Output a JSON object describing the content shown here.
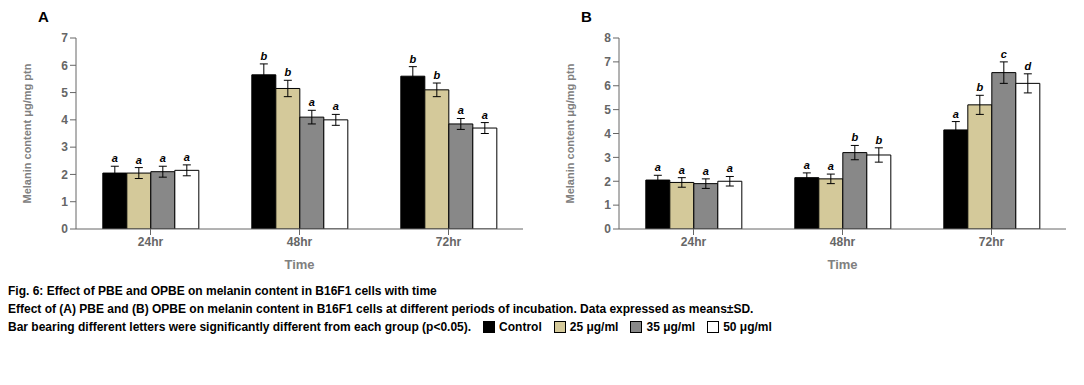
{
  "chart_data": [
    {
      "type": "bar",
      "title": "A",
      "xlabel": "Time",
      "ylabel": "Melanin content μg/mg ptn",
      "categories": [
        "24hr",
        "48hr",
        "72hr"
      ],
      "series": [
        {
          "name": "Control",
          "color": "#000000",
          "values": [
            2.05,
            5.65,
            5.6
          ],
          "errors": [
            0.25,
            0.4,
            0.35
          ],
          "letters": [
            "a",
            "b",
            "b"
          ]
        },
        {
          "name": "25 μg/ml",
          "color": "#d4c99a",
          "values": [
            2.05,
            5.15,
            5.1
          ],
          "errors": [
            0.2,
            0.3,
            0.25
          ],
          "letters": [
            "a",
            "b",
            "b"
          ]
        },
        {
          "name": "35 μg/ml",
          "color": "#888888",
          "values": [
            2.1,
            4.1,
            3.85
          ],
          "errors": [
            0.2,
            0.25,
            0.2
          ],
          "letters": [
            "a",
            "a",
            "a"
          ]
        },
        {
          "name": "50 μg/ml",
          "color": "#ffffff",
          "values": [
            2.15,
            4.0,
            3.7
          ],
          "errors": [
            0.2,
            0.2,
            0.2
          ],
          "letters": [
            "a",
            "a",
            "a"
          ]
        }
      ],
      "ylim": [
        0,
        7
      ],
      "yticks": [
        0,
        1,
        2,
        3,
        4,
        5,
        6,
        7
      ],
      "grid": false
    },
    {
      "type": "bar",
      "title": "B",
      "xlabel": "Time",
      "ylabel": "Melanin content μg/mg ptn",
      "categories": [
        "24hr",
        "48hr",
        "72hr"
      ],
      "series": [
        {
          "name": "Control",
          "color": "#000000",
          "values": [
            2.05,
            2.15,
            4.15
          ],
          "errors": [
            0.2,
            0.2,
            0.35
          ],
          "letters": [
            "a",
            "a",
            "a"
          ]
        },
        {
          "name": "25 μg/ml",
          "color": "#d4c99a",
          "values": [
            1.95,
            2.1,
            5.2
          ],
          "errors": [
            0.2,
            0.2,
            0.4
          ],
          "letters": [
            "a",
            "a",
            "b"
          ]
        },
        {
          "name": "35 μg/ml",
          "color": "#888888",
          "values": [
            1.9,
            3.2,
            6.55
          ],
          "errors": [
            0.2,
            0.3,
            0.45
          ],
          "letters": [
            "a",
            "b",
            "c"
          ]
        },
        {
          "name": "50 μg/ml",
          "color": "#ffffff",
          "values": [
            2.0,
            3.1,
            6.1
          ],
          "errors": [
            0.2,
            0.3,
            0.4
          ],
          "letters": [
            "a",
            "b",
            "d"
          ]
        }
      ],
      "ylim": [
        0,
        8
      ],
      "yticks": [
        0,
        1,
        2,
        3,
        4,
        5,
        6,
        7,
        8
      ],
      "grid": false,
      "legend": "bottom"
    }
  ],
  "caption": [
    "Fig. 6: Effect of PBE and OPBE on melanin content in B16F1 cells with time",
    "Effect of (A) PBE and (B) OPBE on melanin content in B16F1 cells at different periods of incubation. Data expressed as means±SD.",
    "Bar bearing different letters were significantly different from each group (p<0.05)."
  ]
}
